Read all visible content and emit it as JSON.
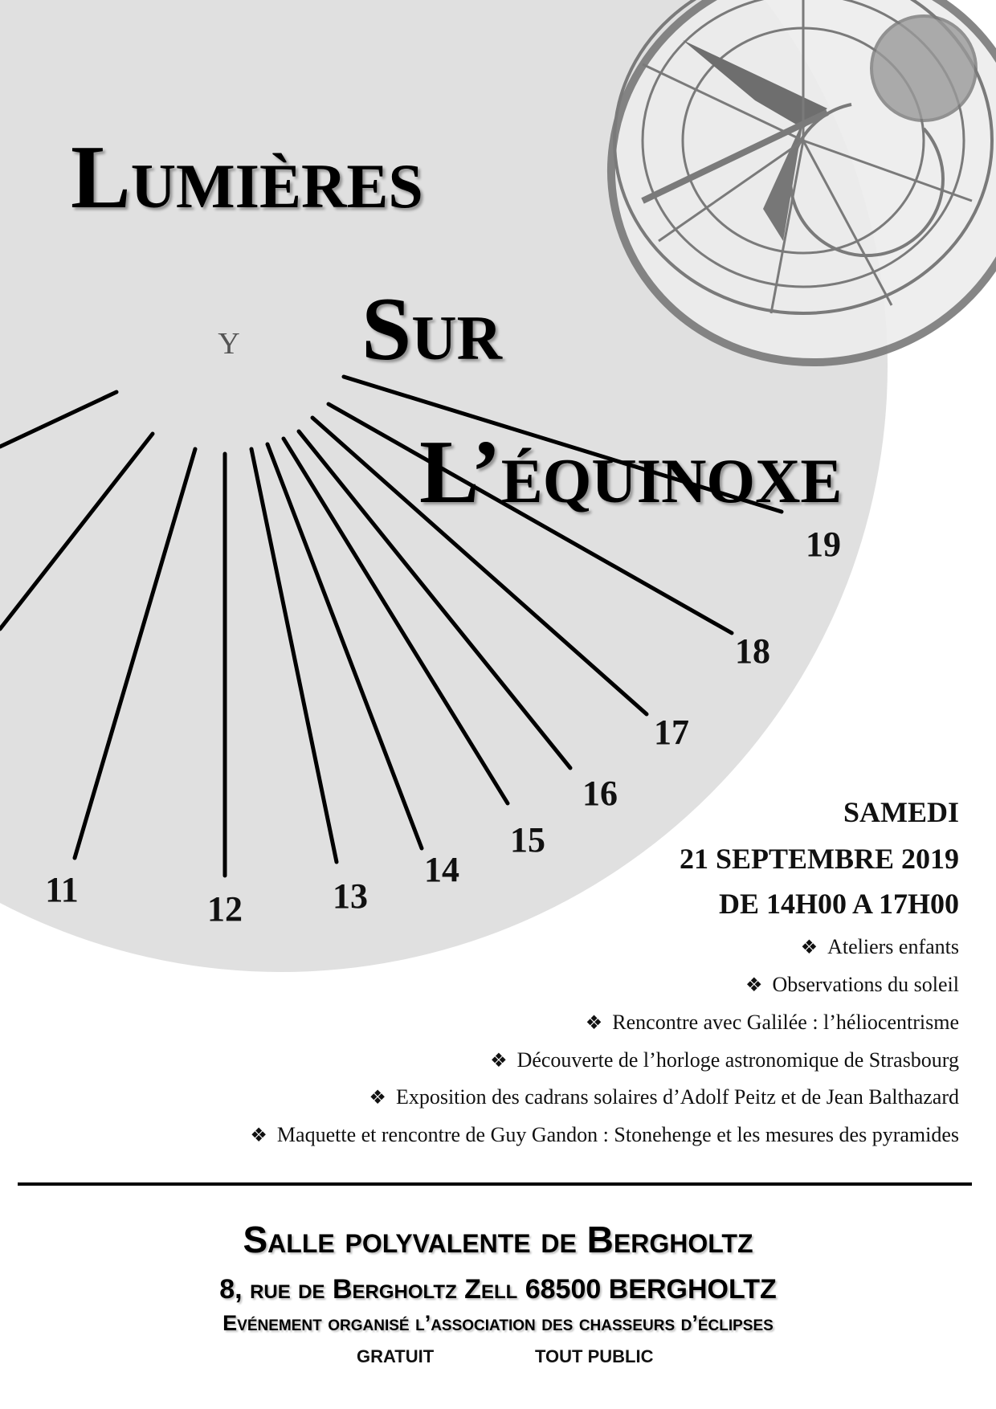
{
  "title": {
    "line1": "Lumières",
    "line2": "Sur",
    "line3": "L’équinoxe"
  },
  "sundial": {
    "marker": "Y",
    "hours": [
      "11",
      "12",
      "13",
      "14",
      "15",
      "16",
      "17",
      "18",
      "19"
    ]
  },
  "event": {
    "day": "SAMEDI",
    "date": "21 SEPTEMBRE 2019",
    "time": "DE 14H00 A 17H00",
    "bullet_icon": "❖",
    "activities": [
      "Ateliers enfants",
      "Observations du soleil",
      "Rencontre avec Galilée : l’héliocentrisme",
      "Découverte de l’horloge astronomique de Strasbourg",
      "Exposition des cadrans solaires d’Adolf Peitz et de Jean Balthazard",
      "Maquette et rencontre de Guy Gandon : Stonehenge et les mesures des pyramides"
    ]
  },
  "venue": {
    "name": "Salle polyvalente de Bergholtz",
    "address": "8, rue de Bergholtz Zell 68500 BERGHOLTZ",
    "organizer": "Evénement organisé l’association des chasseurs d’éclipses",
    "price": "GRATUIT",
    "audience": "TOUT PUBLIC"
  },
  "colors": {
    "circle": "#e0e0e0",
    "clock": "#7a7a7a",
    "text": "#111111"
  }
}
